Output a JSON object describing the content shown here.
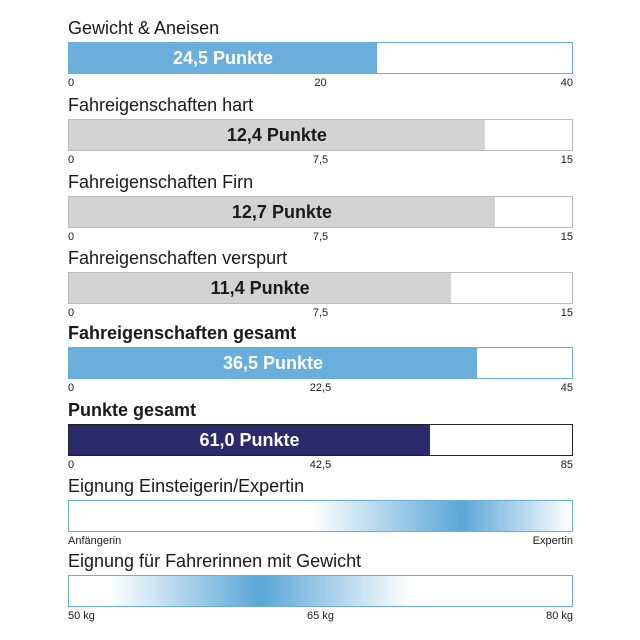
{
  "chart_data": [
    {
      "type": "bar",
      "title": "Gewicht & Aneisen",
      "value": 24.5,
      "value_label": "24,5 Punkte",
      "range": [
        0,
        40
      ],
      "ticks": [
        "0",
        "20",
        "40"
      ],
      "fill_color": "#6aaedb",
      "label_color": "#ffffff"
    },
    {
      "type": "bar",
      "title": "Fahreigenschaften hart",
      "value": 12.4,
      "value_label": "12,4 Punkte",
      "range": [
        0,
        15
      ],
      "ticks": [
        "0",
        "7,5",
        "15"
      ],
      "fill_color": "#d3d3d3",
      "label_color": "#1a1a1a"
    },
    {
      "type": "bar",
      "title": "Fahreigenschaften Firn",
      "value": 12.7,
      "value_label": "12,7 Punkte",
      "range": [
        0,
        15
      ],
      "ticks": [
        "0",
        "7,5",
        "15"
      ],
      "fill_color": "#d3d3d3",
      "label_color": "#1a1a1a"
    },
    {
      "type": "bar",
      "title": "Fahreigenschaften verspurt",
      "value": 11.4,
      "value_label": "11,4 Punkte",
      "range": [
        0,
        15
      ],
      "ticks": [
        "0",
        "7,5",
        "15"
      ],
      "fill_color": "#d3d3d3",
      "label_color": "#1a1a1a"
    },
    {
      "type": "bar",
      "title": "Fahreigenschaften gesamt",
      "value": 36.5,
      "value_label": "36,5 Punkte",
      "range": [
        0,
        45
      ],
      "ticks": [
        "0",
        "22,5",
        "45"
      ],
      "fill_color": "#6aaedb",
      "label_color": "#ffffff",
      "title_bold": true
    },
    {
      "type": "bar",
      "title": "Punkte gesamt",
      "value": 61.0,
      "value_label": "61,0 Punkte",
      "range": [
        0,
        85
      ],
      "ticks": [
        "0",
        "42,5",
        "85"
      ],
      "fill_color": "#2b2a6b",
      "label_color": "#ffffff",
      "title_bold": true
    },
    {
      "type": "gradient-scale",
      "title": "Eignung Einsteigerin/Expertin",
      "peak": 0.78,
      "peak_color": "#5aa6d8",
      "ticks": [
        "Anfängerin",
        "Expertin"
      ]
    },
    {
      "type": "gradient-scale",
      "title": "Eignung für Fahrerinnen mit Gewicht",
      "peak": 0.38,
      "peak_color": "#5aa6d8",
      "ticks": [
        "50 kg",
        "65 kg",
        "80 kg"
      ]
    }
  ]
}
